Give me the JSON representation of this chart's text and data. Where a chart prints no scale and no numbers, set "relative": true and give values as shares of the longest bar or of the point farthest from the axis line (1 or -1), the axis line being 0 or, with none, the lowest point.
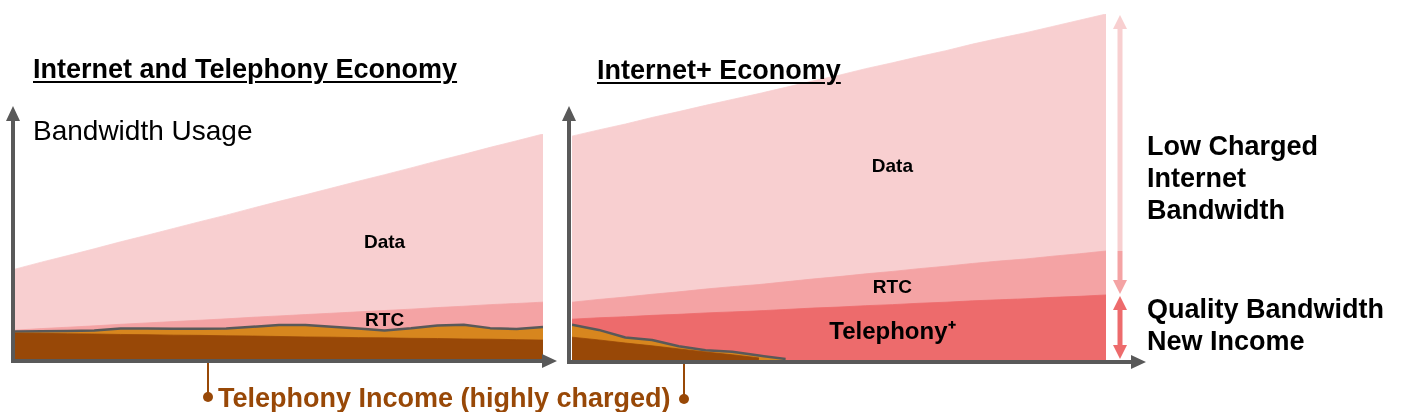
{
  "chart_data": [
    {
      "type": "area",
      "title": "Internet and Telephony Economy",
      "ylabel": "Bandwidth Usage",
      "relative": true,
      "stacked": true,
      "categories": [
        null,
        null,
        null,
        null,
        null,
        null,
        null,
        null,
        null,
        null,
        null,
        null,
        null,
        null,
        null,
        null,
        null,
        null,
        null,
        null,
        null
      ],
      "series": [
        {
          "color": "#984807",
          "values": [
            0.119,
            0.118,
            0.116,
            0.115,
            0.113,
            0.112,
            0.11,
            0.109,
            0.107,
            0.106,
            0.104,
            0.102,
            0.101,
            0.099,
            0.098,
            0.096,
            0.095,
            0.093,
            0.092,
            0.09,
            0.088
          ]
        },
        {
          "color": "#d7861e",
          "values": [
            0.007,
            0.009,
            0.012,
            0.015,
            0.026,
            0.027,
            0.028,
            0.029,
            0.032,
            0.041,
            0.051,
            0.053,
            0.046,
            0.04,
            0.033,
            0.044,
            0.058,
            0.063,
            0.049,
            0.047,
            0.058
          ]
        },
        {
          "name": "RTC",
          "color": "#f4a3a4",
          "values": [
            0.006,
            0.012,
            0.017,
            0.021,
            0.019,
            0.025,
            0.032,
            0.038,
            0.043,
            0.042,
            0.04,
            0.046,
            0.06,
            0.074,
            0.088,
            0.085,
            0.079,
            0.082,
            0.104,
            0.113,
            0.11
          ]
        },
        {
          "name": "Data",
          "color": "#f8cfd0",
          "values": [
            0.27,
            0.294,
            0.317,
            0.341,
            0.365,
            0.388,
            0.412,
            0.436,
            0.459,
            0.483,
            0.507,
            0.53,
            0.554,
            0.578,
            0.601,
            0.625,
            0.649,
            0.672,
            0.696,
            0.72,
            0.744
          ]
        }
      ],
      "annotations": [
        "Telephony Income (highly charged)"
      ]
    },
    {
      "type": "area",
      "title": "Internet+ Economy",
      "relative": true,
      "stacked": true,
      "categories": [
        null,
        null,
        null,
        null,
        null,
        null,
        null,
        null,
        null,
        null,
        null,
        null,
        null,
        null,
        null,
        null,
        null,
        null,
        null,
        null,
        null
      ],
      "series": [
        {
          "color": "#984807",
          "values": [
            0.066,
            0.058,
            0.049,
            0.041,
            0.032,
            0.023,
            0.015,
            0.006,
            null,
            null,
            null,
            null,
            null,
            null,
            null,
            null,
            null,
            null,
            null,
            null,
            null
          ]
        },
        {
          "color": "#d7861e",
          "values": [
            0.036,
            0.029,
            0.016,
            0.017,
            0.008,
            0.005,
            0.009,
            0.007,
            0.003,
            null,
            null,
            null,
            null,
            null,
            null,
            null,
            null,
            null,
            null,
            null,
            null
          ]
        },
        {
          "name": "Telephony⁺",
          "color": "#ed6b6c",
          "values": [
            0.016,
            0.035,
            0.06,
            0.071,
            0.092,
            0.108,
            0.115,
            0.129,
            0.143,
            0.15,
            0.153,
            0.157,
            0.16,
            0.164,
            0.167,
            0.171,
            0.174,
            0.177,
            0.181,
            0.184,
            0.188
          ]
        },
        {
          "name": "RTC",
          "color": "#f4a3a4",
          "values": [
            0.049,
            0.053,
            0.057,
            0.061,
            0.065,
            0.069,
            0.073,
            0.076,
            0.08,
            0.084,
            0.088,
            0.092,
            0.096,
            0.1,
            0.104,
            0.108,
            0.112,
            0.115,
            0.119,
            0.123,
            0.127
          ]
        },
        {
          "name": "Data",
          "color": "#f8cfd0",
          "values": [
            0.48,
            0.49,
            0.5,
            0.511,
            0.521,
            0.531,
            0.541,
            0.552,
            0.562,
            0.572,
            0.582,
            0.593,
            0.603,
            0.613,
            0.623,
            0.634,
            0.644,
            0.654,
            0.664,
            0.675,
            0.685
          ]
        }
      ],
      "annotations": [
        "Low Charged Internet Bandwidth",
        "Quality Bandwidth New Income"
      ]
    }
  ]
}
